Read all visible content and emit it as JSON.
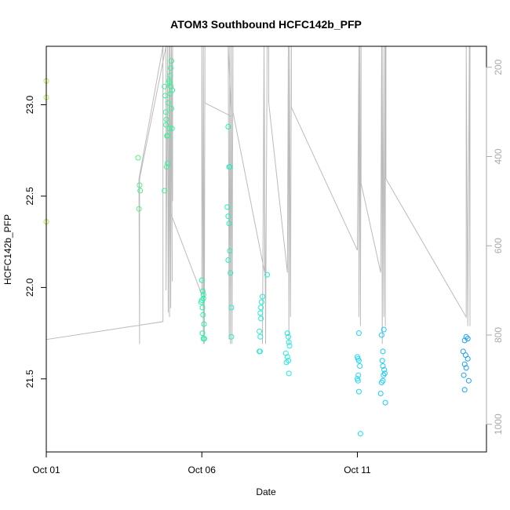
{
  "chart_data": {
    "type": "scatter",
    "title": "ATOM3 Southbound HCFC142b_PFP",
    "xlabel": "Date",
    "ylabel": "HCFC142b_PFP",
    "x_unit": "days",
    "xlim": [
      0,
      14.15
    ],
    "ylim": [
      21.1,
      23.32
    ],
    "x_ticks": [
      {
        "value": 0,
        "label": "Oct 01"
      },
      {
        "value": 5,
        "label": "Oct 06"
      },
      {
        "value": 10,
        "label": "Oct 11"
      }
    ],
    "y_ticks": [
      21.5,
      22.0,
      22.5,
      23.0
    ],
    "right_axis": {
      "label": "",
      "lim": [
        1062,
        153
      ],
      "ticks": [
        200,
        400,
        600,
        800,
        1000
      ],
      "color": "#aaaaaa"
    },
    "marker_color_scale": {
      "description": "latitude color gradient, yellow-green to blue",
      "colors": [
        "#b5ea45",
        "#23f5a5",
        "#1ee8f5",
        "#1a9ef0"
      ]
    },
    "points": [
      [
        0.0,
        23.13
      ],
      [
        0.0,
        23.04
      ],
      [
        0.0,
        22.36
      ],
      [
        2.95,
        22.71
      ],
      [
        3.0,
        22.56
      ],
      [
        3.02,
        22.53
      ],
      [
        2.98,
        22.43
      ],
      [
        3.8,
        23.1
      ],
      [
        3.82,
        23.05
      ],
      [
        3.85,
        22.89
      ],
      [
        3.87,
        22.66
      ],
      [
        3.9,
        22.68
      ],
      [
        3.84,
        22.96
      ],
      [
        3.86,
        22.92
      ],
      [
        3.88,
        22.83
      ],
      [
        3.9,
        22.83
      ],
      [
        3.92,
        23.01
      ],
      [
        3.95,
        23.13
      ],
      [
        3.97,
        23.12
      ],
      [
        4.0,
        23.1
      ],
      [
        4.02,
        23.24
      ],
      [
        4.0,
        23.2
      ],
      [
        3.98,
        23.16
      ],
      [
        4.05,
        23.08
      ],
      [
        4.02,
        22.98
      ],
      [
        3.96,
        22.87
      ],
      [
        3.8,
        22.53
      ],
      [
        3.98,
        23.06
      ],
      [
        4.04,
        22.87
      ],
      [
        5.0,
        22.04
      ],
      [
        5.03,
        21.98
      ],
      [
        5.05,
        21.96
      ],
      [
        5.0,
        21.93
      ],
      [
        4.98,
        21.92
      ],
      [
        5.02,
        21.89
      ],
      [
        5.04,
        21.85
      ],
      [
        5.07,
        21.8
      ],
      [
        5.02,
        21.75
      ],
      [
        5.05,
        21.72
      ],
      [
        5.08,
        21.72
      ],
      [
        5.05,
        21.94
      ],
      [
        5.85,
        22.88
      ],
      [
        5.88,
        22.66
      ],
      [
        5.9,
        22.66
      ],
      [
        5.82,
        22.44
      ],
      [
        5.85,
        22.39
      ],
      [
        5.88,
        22.35
      ],
      [
        5.9,
        22.2
      ],
      [
        5.85,
        22.15
      ],
      [
        5.92,
        22.08
      ],
      [
        5.95,
        21.89
      ],
      [
        5.95,
        21.73
      ],
      [
        7.1,
        22.07
      ],
      [
        6.95,
        21.95
      ],
      [
        6.92,
        21.92
      ],
      [
        6.9,
        21.89
      ],
      [
        6.88,
        21.86
      ],
      [
        6.9,
        21.83
      ],
      [
        6.85,
        21.76
      ],
      [
        6.88,
        21.73
      ],
      [
        6.85,
        21.65
      ],
      [
        6.87,
        21.65
      ],
      [
        7.75,
        21.75
      ],
      [
        7.78,
        21.73
      ],
      [
        7.8,
        21.7
      ],
      [
        7.82,
        21.68
      ],
      [
        7.7,
        21.64
      ],
      [
        7.75,
        21.62
      ],
      [
        7.78,
        21.6
      ],
      [
        7.72,
        21.59
      ],
      [
        7.8,
        21.53
      ],
      [
        10.05,
        21.75
      ],
      [
        10.0,
        21.62
      ],
      [
        10.02,
        21.61
      ],
      [
        10.05,
        21.6
      ],
      [
        10.08,
        21.57
      ],
      [
        10.03,
        21.52
      ],
      [
        10.0,
        21.5
      ],
      [
        10.05,
        21.43
      ],
      [
        10.1,
        21.2
      ],
      [
        10.02,
        21.49
      ],
      [
        10.85,
        21.77
      ],
      [
        10.78,
        21.74
      ],
      [
        10.82,
        21.65
      ],
      [
        10.8,
        21.6
      ],
      [
        10.82,
        21.57
      ],
      [
        10.86,
        21.55
      ],
      [
        10.88,
        21.53
      ],
      [
        10.84,
        21.52
      ],
      [
        10.78,
        21.48
      ],
      [
        10.82,
        21.49
      ],
      [
        10.75,
        21.42
      ],
      [
        10.9,
        21.37
      ],
      [
        13.5,
        21.73
      ],
      [
        13.55,
        21.72
      ],
      [
        13.45,
        21.71
      ],
      [
        13.4,
        21.65
      ],
      [
        13.48,
        21.63
      ],
      [
        13.55,
        21.61
      ],
      [
        13.45,
        21.58
      ],
      [
        13.5,
        21.56
      ],
      [
        13.42,
        21.52
      ],
      [
        13.58,
        21.49
      ],
      [
        13.45,
        21.44
      ]
    ],
    "altitude_trace": [
      [
        0.0,
        153
      ],
      [
        0.0,
        810
      ],
      [
        3.75,
        770
      ],
      [
        3.75,
        153
      ],
      [
        2.98,
        450
      ],
      [
        3.0,
        820
      ],
      [
        3.0,
        450
      ],
      [
        3.85,
        153
      ],
      [
        3.85,
        700
      ],
      [
        3.9,
        153
      ],
      [
        3.92,
        750
      ],
      [
        3.95,
        153
      ],
      [
        3.96,
        760
      ],
      [
        3.98,
        153
      ],
      [
        4.0,
        740
      ],
      [
        4.02,
        153
      ],
      [
        4.05,
        680
      ],
      [
        4.02,
        153
      ],
      [
        4.06,
        500
      ],
      [
        4.06,
        153
      ],
      [
        3.96,
        520
      ],
      [
        5.0,
        710
      ],
      [
        5.0,
        153
      ],
      [
        5.05,
        820
      ],
      [
        5.05,
        153
      ],
      [
        5.08,
        820
      ],
      [
        5.1,
        153
      ],
      [
        5.1,
        280
      ],
      [
        5.95,
        310
      ],
      [
        5.85,
        153
      ],
      [
        5.88,
        810
      ],
      [
        5.9,
        153
      ],
      [
        5.92,
        820
      ],
      [
        5.95,
        153
      ],
      [
        5.97,
        820
      ],
      [
        6.0,
        153
      ],
      [
        6.0,
        300
      ],
      [
        7.02,
        660
      ],
      [
        7.0,
        153
      ],
      [
        6.95,
        820
      ],
      [
        7.0,
        153
      ],
      [
        7.05,
        820
      ],
      [
        7.1,
        153
      ],
      [
        7.15,
        153
      ],
      [
        7.15,
        280
      ],
      [
        7.75,
        660
      ],
      [
        7.78,
        153
      ],
      [
        7.8,
        820
      ],
      [
        7.82,
        153
      ],
      [
        7.85,
        760
      ],
      [
        7.88,
        153
      ],
      [
        7.88,
        290
      ],
      [
        10.0,
        610
      ],
      [
        10.05,
        153
      ],
      [
        10.05,
        760
      ],
      [
        10.08,
        153
      ],
      [
        10.1,
        780
      ],
      [
        10.12,
        153
      ],
      [
        10.12,
        460
      ],
      [
        10.75,
        660
      ],
      [
        10.78,
        153
      ],
      [
        10.8,
        820
      ],
      [
        10.82,
        153
      ],
      [
        10.85,
        760
      ],
      [
        10.88,
        153
      ],
      [
        10.9,
        780
      ],
      [
        10.9,
        153
      ],
      [
        10.92,
        153
      ],
      [
        10.92,
        450
      ],
      [
        13.5,
        760
      ],
      [
        13.5,
        153
      ],
      [
        13.55,
        780
      ],
      [
        13.6,
        153
      ],
      [
        13.62,
        780
      ],
      [
        13.62,
        153
      ]
    ]
  }
}
